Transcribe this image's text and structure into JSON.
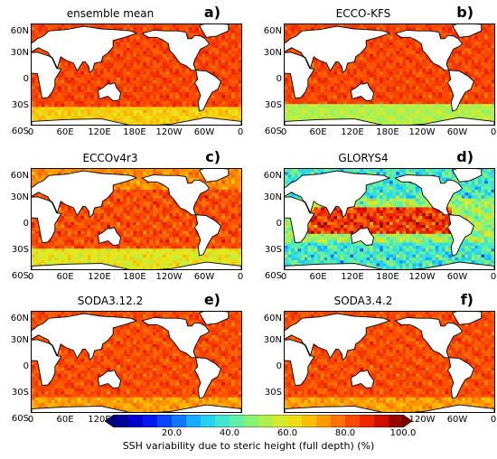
{
  "panels": [
    {
      "title": "ensemble mean",
      "label": "a)",
      "field": "mean"
    },
    {
      "title": "ECCO-KFS",
      "label": "b)",
      "field": "kfs"
    },
    {
      "title": "ECCOv4r3",
      "label": "c)",
      "field": "v4"
    },
    {
      "title": "GLORYS4",
      "label": "d)",
      "field": "glorys"
    },
    {
      "title": "SODA3.12.2",
      "label": "e)",
      "field": "soda"
    },
    {
      "title": "SODA3.4.2",
      "label": "f)",
      "field": "soda"
    }
  ],
  "lat_ticks": [
    "60N",
    "30N",
    "0",
    "30S",
    "60S"
  ],
  "lon_ticks": [
    "0",
    "60E",
    "120E",
    "180E",
    "120W",
    "60W",
    "0"
  ],
  "colorbar": {
    "ticks": [
      "20.0",
      "40.0",
      "60.0",
      "80.0",
      "100.0"
    ],
    "range": [
      0,
      100
    ],
    "title": "SSH variability due to steric height (full depth) (%)"
  },
  "colors": {
    "land": "#ffffff",
    "coast": "#000000",
    "scale": [
      "#00007f",
      "#0000e8",
      "#0a5cff",
      "#18c8ff",
      "#4cf0c0",
      "#9cf25c",
      "#e8ea1c",
      "#ffb000",
      "#ff5a00",
      "#e81400",
      "#7f0000"
    ]
  }
}
